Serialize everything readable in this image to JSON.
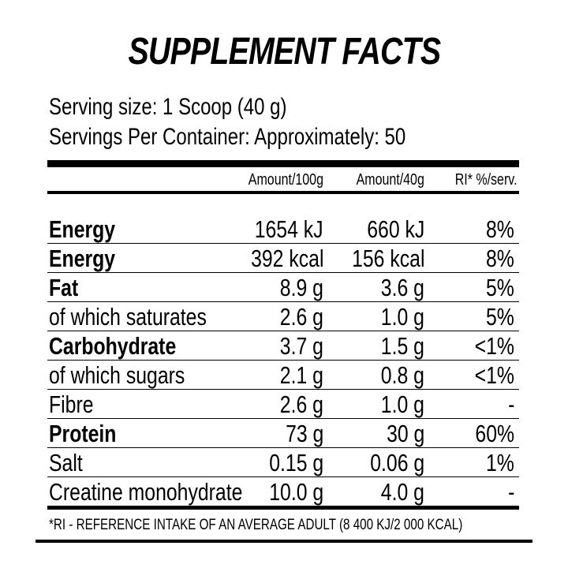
{
  "title": "SUPPLEMENT FACTS",
  "serving_size": "Serving size: 1 Scoop (40 g)",
  "servings_per_container": "Servings Per Container: Approximately: 50",
  "table": {
    "headers": [
      "Amount/100g",
      "Amount/40g",
      "RI* %/serv."
    ],
    "rows": [
      {
        "label": "Energy",
        "bold": true,
        "per100g": "1654 kJ",
        "per40g": "660 kJ",
        "ri": "8%"
      },
      {
        "label": "Energy",
        "bold": true,
        "per100g": "392 kcal",
        "per40g": "156 kcal",
        "ri": "8%"
      },
      {
        "label": "Fat",
        "bold": true,
        "per100g": "8.9 g",
        "per40g": "3.6 g",
        "ri": "5%"
      },
      {
        "label": "of which saturates",
        "bold": false,
        "per100g": "2.6 g",
        "per40g": "1.0 g",
        "ri": "5%"
      },
      {
        "label": "Carbohydrate",
        "bold": true,
        "per100g": "3.7 g",
        "per40g": "1.5 g",
        "ri": "<1%"
      },
      {
        "label": "of which sugars",
        "bold": false,
        "per100g": "2.1 g",
        "per40g": "0.8 g",
        "ri": "<1%"
      },
      {
        "label": "Fibre",
        "bold": false,
        "per100g": "2.6 g",
        "per40g": "1.0 g",
        "ri": "-"
      },
      {
        "label": "Protein",
        "bold": true,
        "per100g": "73 g",
        "per40g": "30 g",
        "ri": "60%"
      },
      {
        "label": "Salt",
        "bold": false,
        "per100g": "0.15 g",
        "per40g": "0.06 g",
        "ri": "1%"
      },
      {
        "label": "Creatine monohydrate",
        "bold": false,
        "per100g": "10.0 g",
        "per40g": "4.0 g",
        "ri": "-"
      }
    ]
  },
  "footnote": "*RI - REFERENCE INTAKE OF AN AVERAGE ADULT (8 400 KJ/2 000 KCAL)"
}
